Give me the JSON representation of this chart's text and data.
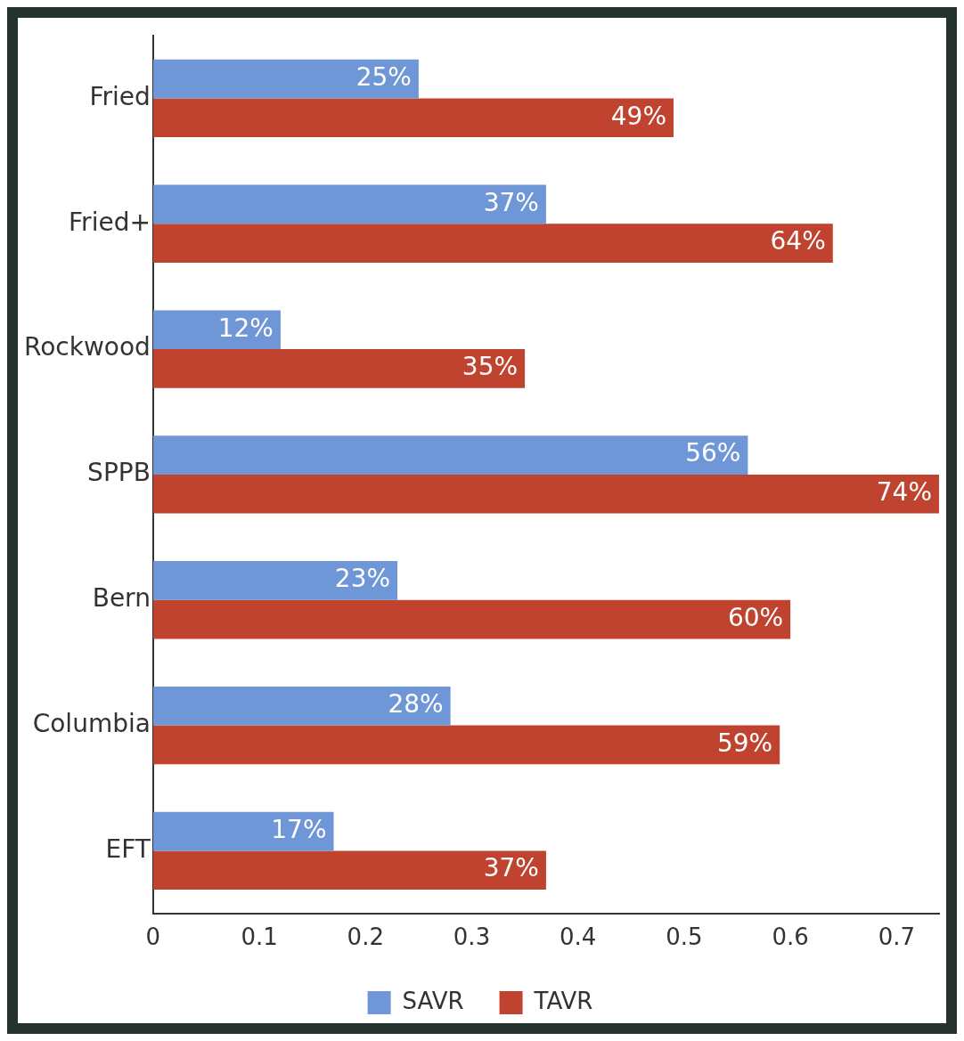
{
  "chart_data": {
    "type": "bar",
    "orientation": "horizontal",
    "categories": [
      "Fried",
      "Fried+",
      "Rockwood",
      "SPPB",
      "Bern",
      "Columbia",
      "EFT"
    ],
    "series": [
      {
        "name": "SAVR",
        "color": "#6f96d6",
        "values": [
          0.25,
          0.37,
          0.12,
          0.56,
          0.23,
          0.28,
          0.17
        ],
        "value_labels": [
          "25%",
          "37%",
          "12%",
          "56%",
          "23%",
          "28%",
          "17%"
        ]
      },
      {
        "name": "TAVR",
        "color": "#c0432f",
        "values": [
          0.49,
          0.64,
          0.35,
          0.74,
          0.6,
          0.59,
          0.37
        ],
        "value_labels": [
          "49%",
          "64%",
          "35%",
          "74%",
          "60%",
          "59%",
          "37%"
        ]
      }
    ],
    "xlim": [
      0,
      0.74
    ],
    "xticks": [
      0,
      0.1,
      0.2,
      0.3,
      0.4,
      0.5,
      0.6,
      0.7
    ],
    "grid": false,
    "legend": "bottom"
  }
}
